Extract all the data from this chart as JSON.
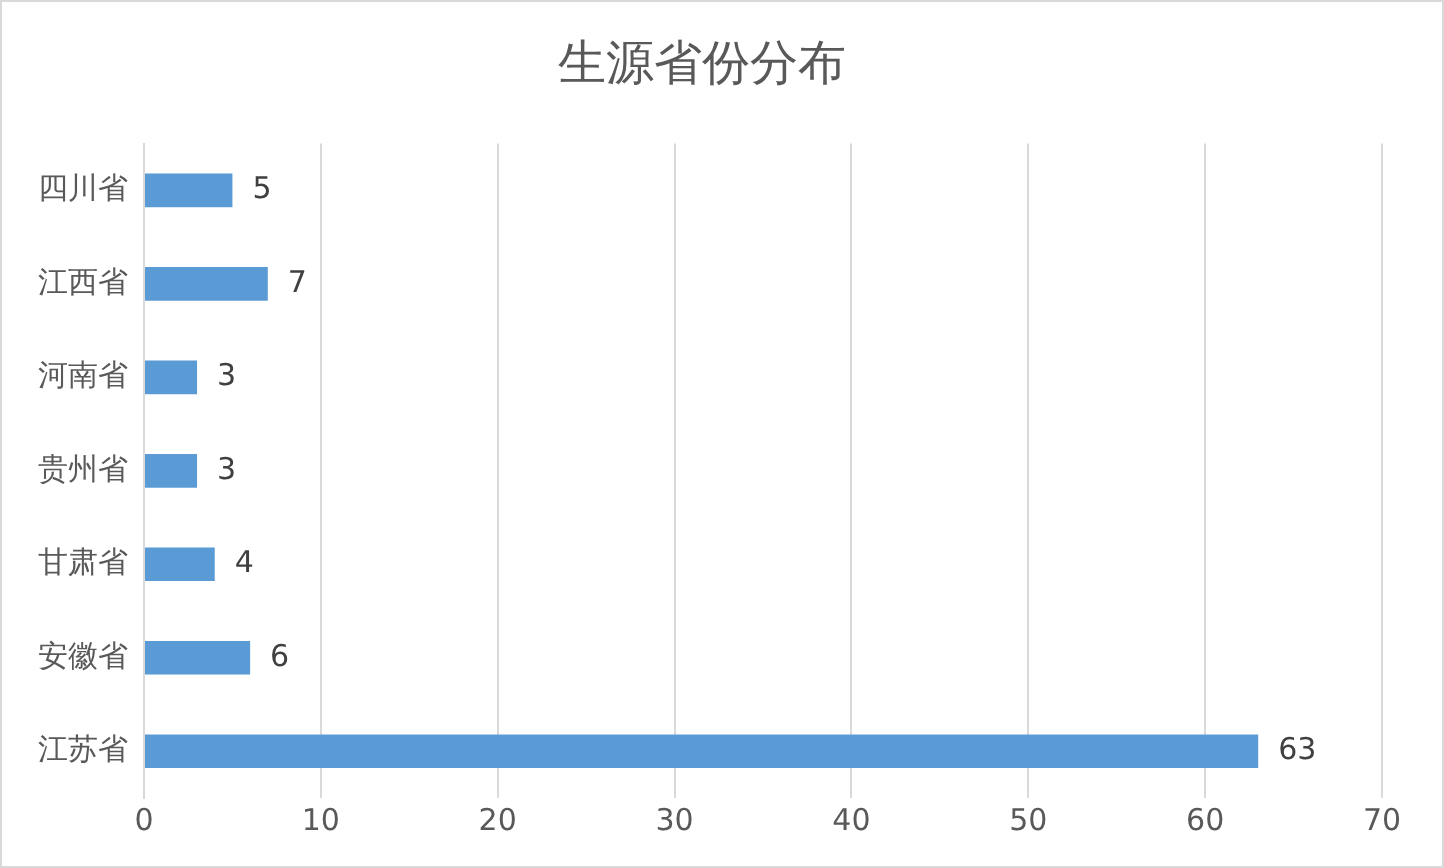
{
  "chart_data": {
    "type": "bar",
    "orientation": "horizontal",
    "title": "生源省份分布",
    "categories": [
      "四川省",
      "江西省",
      "河南省",
      "贵州省",
      "甘肃省",
      "安徽省",
      "江苏省"
    ],
    "values": [
      5,
      7,
      3,
      3,
      4,
      6,
      63
    ],
    "color": "#5b9bd5",
    "xlim": [
      0,
      70
    ],
    "xticks": [
      0,
      10,
      20,
      30,
      40,
      50,
      60,
      70
    ],
    "grid": "x",
    "data_labels": true,
    "legend": false
  }
}
